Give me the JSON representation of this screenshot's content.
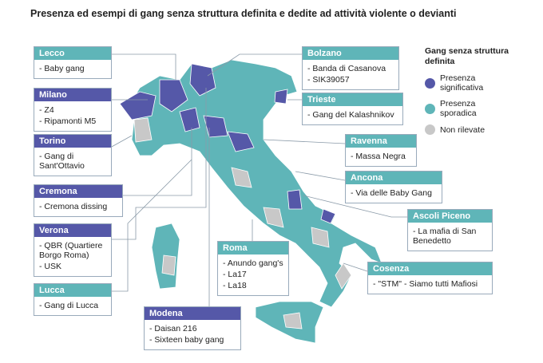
{
  "title": "Presenza ed esempi di gang senza struttura definita e dedite ad attività violente o devianti",
  "legend": {
    "title": "Gang senza struttura definita",
    "items": [
      {
        "label": "Presenza significativa",
        "color": "#5558a8"
      },
      {
        "label": "Presenza sporadica",
        "color": "#5fb5b8"
      },
      {
        "label": "Non rilevate",
        "color": "#c8c8c8"
      }
    ]
  },
  "callouts": [
    {
      "city": "Lecco",
      "color": "#5fb5b8",
      "items": [
        "- Baby gang"
      ]
    },
    {
      "city": "Milano",
      "color": "#5558a8",
      "items": [
        "- Z4",
        "- Ripamonti M5"
      ]
    },
    {
      "city": "Torino",
      "color": "#5558a8",
      "items": [
        "- Gang di Sant'Ottavio"
      ]
    },
    {
      "city": "Cremona",
      "color": "#5558a8",
      "items": [
        "- Cremona dissing"
      ]
    },
    {
      "city": "Verona",
      "color": "#5558a8",
      "items": [
        "- QBR (Quartiere Borgo Roma)",
        "- USK"
      ]
    },
    {
      "city": "Lucca",
      "color": "#5fb5b8",
      "items": [
        "- Gang di Lucca"
      ]
    },
    {
      "city": "Modena",
      "color": "#5558a8",
      "items": [
        "- Daisan 216",
        "- Sixteen baby gang"
      ]
    },
    {
      "city": "Roma",
      "color": "#5fb5b8",
      "items": [
        "- Anundo gang's",
        "- La17",
        "- La18"
      ]
    },
    {
      "city": "Bolzano",
      "color": "#5fb5b8",
      "items": [
        "- Banda di Casanova",
        "- SIK39057"
      ]
    },
    {
      "city": "Trieste",
      "color": "#5fb5b8",
      "items": [
        "- Gang del Kalashnikov"
      ]
    },
    {
      "city": "Ravenna",
      "color": "#5fb5b8",
      "items": [
        "- Massa Negra"
      ]
    },
    {
      "city": "Ancona",
      "color": "#5fb5b8",
      "items": [
        "- Via delle Baby Gang"
      ]
    },
    {
      "city": "Ascoli Piceno",
      "color": "#5fb5b8",
      "items": [
        "- La mafia di San Benedetto"
      ]
    },
    {
      "city": "Cosenza",
      "color": "#5fb5b8",
      "items": [
        "- \"STM\" - Siamo tutti Mafiosi"
      ]
    }
  ]
}
